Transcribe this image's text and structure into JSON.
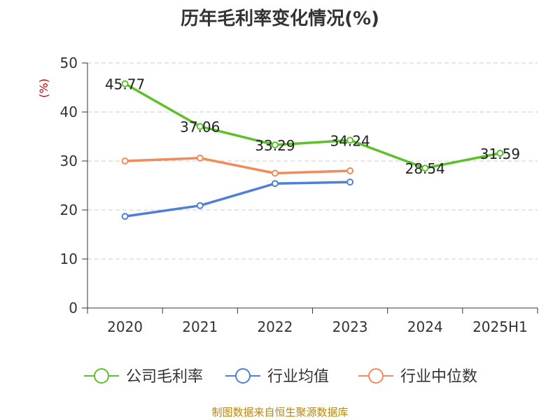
{
  "title": "历年毛利率变化情况(%)",
  "source": "制图数据来自恒生聚源数据库",
  "chart_data": {
    "type": "line",
    "title": "历年毛利率变化情况(%)",
    "ylabel": "(%)",
    "xlabel": "",
    "categories": [
      "2020",
      "2021",
      "2022",
      "2023",
      "2024",
      "2025H1"
    ],
    "ylim": [
      0,
      50
    ],
    "yticks": [
      0,
      10,
      20,
      30,
      40,
      50
    ],
    "grid": true,
    "legend_position": "bottom",
    "series": [
      {
        "name": "公司毛利率",
        "color": "#5cc12b",
        "values": [
          45.77,
          37.06,
          33.29,
          34.24,
          28.54,
          31.59
        ],
        "labels": [
          "45.77",
          "37.06",
          "33.29",
          "34.24",
          "28.54",
          "31.59"
        ]
      },
      {
        "name": "行业均值",
        "color": "#4f7fd6",
        "values": [
          18.7,
          20.9,
          25.4,
          25.7,
          null,
          null
        ],
        "labels": []
      },
      {
        "name": "行业中位数",
        "color": "#f08c5a",
        "values": [
          30.0,
          30.6,
          27.5,
          28.0,
          null,
          null
        ],
        "labels": []
      }
    ]
  }
}
